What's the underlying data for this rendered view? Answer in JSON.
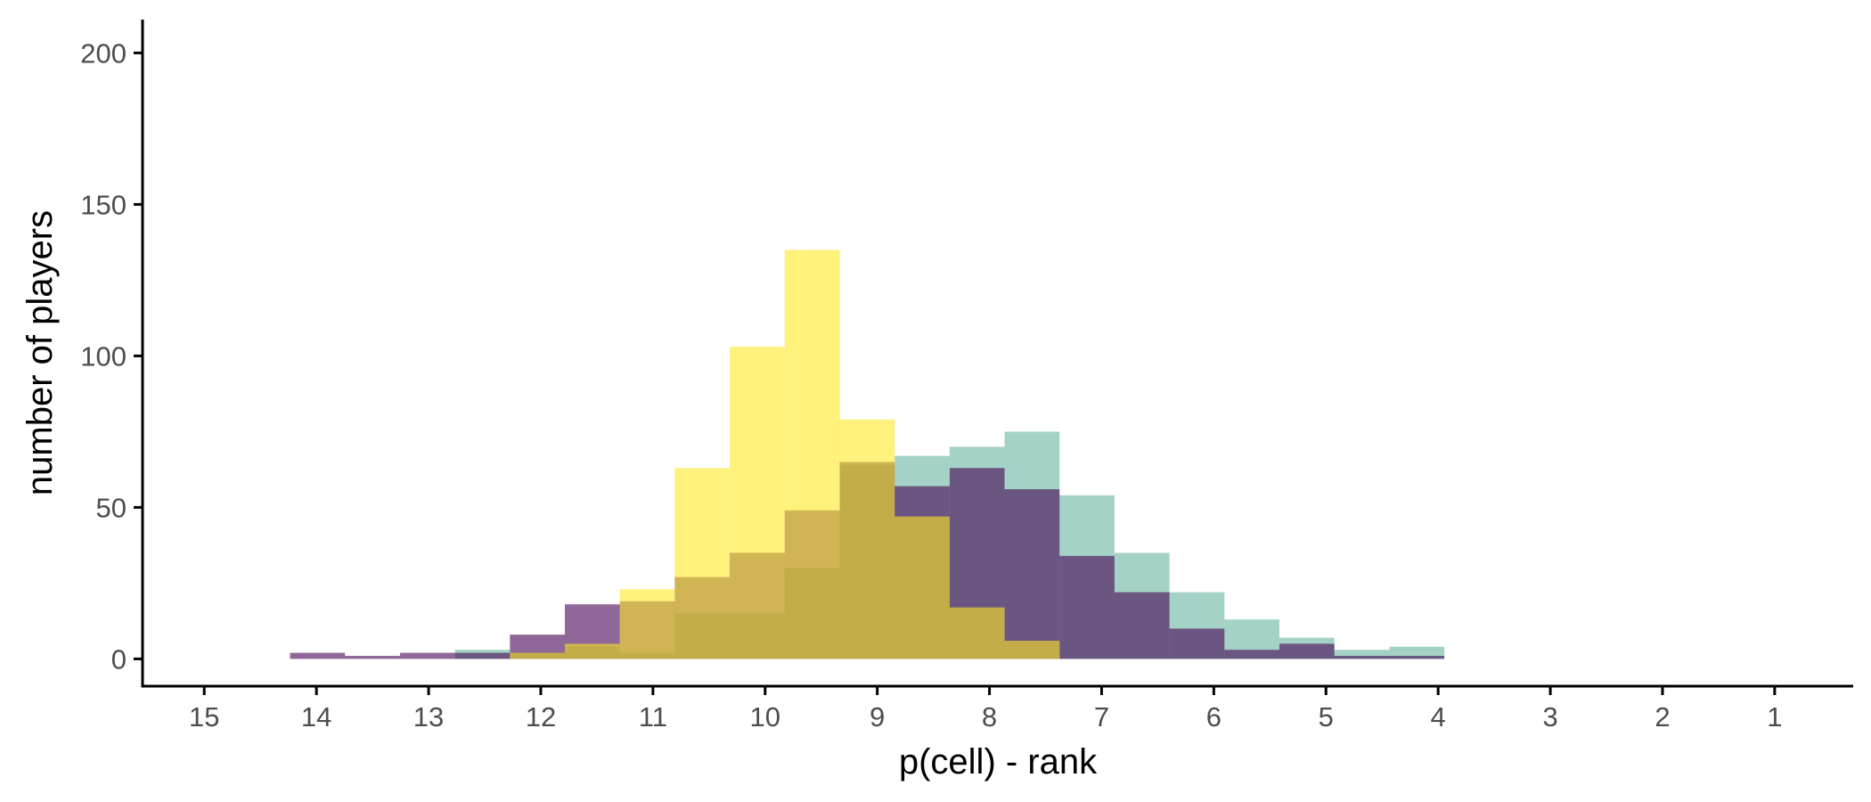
{
  "chart_data": {
    "type": "bar",
    "title": "",
    "xlabel": "p(cell) - rank",
    "ylabel": "number of players",
    "x_reversed": true,
    "xlim": [
      15.55,
      0.3
    ],
    "ylim": [
      -9,
      211
    ],
    "x_ticks": [
      15,
      14,
      13,
      12,
      11,
      10,
      9,
      8,
      7,
      6,
      5,
      4,
      3,
      2,
      1
    ],
    "y_ticks": [
      0,
      50,
      100,
      150,
      200
    ],
    "grid": false,
    "legend": "none",
    "bin_width": 0.49,
    "series": [
      {
        "color": "#75baa7",
        "opacity": 0.65,
        "bin_centers": [
          12.52,
          12.03,
          11.54,
          11.05,
          10.56,
          10.07,
          9.58,
          9.09,
          8.6,
          8.11,
          7.62,
          7.13,
          6.64,
          6.15,
          5.66,
          5.17,
          4.68,
          4.19
        ],
        "values": [
          3,
          2,
          4,
          2,
          15,
          15,
          30,
          64,
          67,
          70,
          75,
          54,
          35,
          22,
          13,
          7,
          3,
          4
        ]
      },
      {
        "color": "#440154",
        "opacity": 0.6,
        "bin_centers": [
          13.99,
          13.5,
          13.01,
          12.52,
          12.03,
          11.54,
          11.05,
          10.56,
          10.07,
          9.58,
          9.09,
          8.6,
          8.11,
          7.62,
          7.13,
          6.64,
          6.15,
          5.66,
          5.17,
          4.68,
          4.19
        ],
        "values": [
          2,
          1,
          2,
          2,
          8,
          18,
          19,
          27,
          35,
          49,
          65,
          57,
          63,
          56,
          34,
          22,
          10,
          3,
          5,
          1,
          1
        ]
      },
      {
        "color": "#fde725",
        "opacity": 0.6,
        "bin_centers": [
          12.03,
          11.54,
          11.05,
          10.56,
          10.07,
          9.58,
          9.09,
          8.6,
          8.11,
          7.62
        ],
        "values": [
          2,
          5,
          23,
          63,
          103,
          135,
          79,
          47,
          17,
          6
        ]
      }
    ]
  }
}
